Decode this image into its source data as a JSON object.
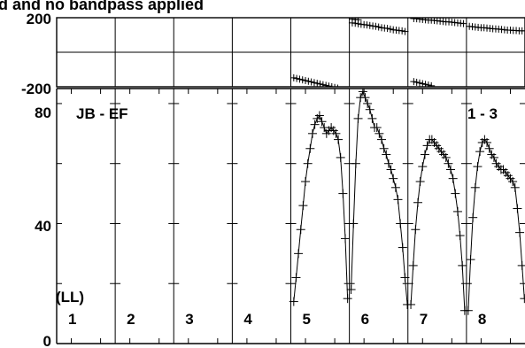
{
  "chart_data": {
    "type": "scatter",
    "title": "d and no bandpass applied",
    "baseline_label": "JB - EF",
    "baseline_range_label": "1 - 3",
    "polarization_label": "(LL)",
    "channel_labels": [
      "1",
      "2",
      "3",
      "4",
      "5",
      "6",
      "7",
      "8"
    ],
    "phase_panel": {
      "ylim": [
        -200,
        200
      ],
      "tick_labels": [
        "200",
        "-200"
      ],
      "series": [
        {
          "channel": "6",
          "x": [
            0.05,
            0.1,
            0.15
          ],
          "y": [
            192,
            190,
            188
          ]
        },
        {
          "channel": "5",
          "x": [
            0.05,
            0.1,
            0.15,
            0.2,
            0.25,
            0.3,
            0.35,
            0.4,
            0.45,
            0.5,
            0.55,
            0.6,
            0.65,
            0.7,
            0.75,
            0.8
          ],
          "y": [
            -148,
            -152,
            -156,
            -160,
            -164,
            -168,
            -172,
            -176,
            -180,
            -184,
            -188,
            -192,
            -196,
            -200,
            -204,
            -208
          ]
        },
        {
          "channel": "6",
          "x": [
            0.05,
            0.1,
            0.15,
            0.2,
            0.25,
            0.3,
            0.35,
            0.4,
            0.45,
            0.5,
            0.55,
            0.6,
            0.65,
            0.7,
            0.75,
            0.8,
            0.85,
            0.9,
            0.95
          ],
          "y": [
            170,
            168,
            165,
            162,
            160,
            158,
            155,
            152,
            150,
            146,
            142,
            140,
            138,
            134,
            130,
            128,
            126,
            124,
            120
          ]
        },
        {
          "channel": "7",
          "x": [
            0.1,
            0.15,
            0.2,
            0.25,
            0.3,
            0.35,
            0.4,
            0.45,
            0.5,
            0.55,
            0.6,
            0.65,
            0.7,
            0.75,
            0.8,
            0.85,
            0.9,
            0.95
          ],
          "y": [
            195,
            194,
            192,
            190,
            188,
            186,
            186,
            184,
            182,
            180,
            178,
            176,
            176,
            174,
            172,
            170,
            168,
            166
          ]
        },
        {
          "channel": "7",
          "x": [
            0.1,
            0.15,
            0.2,
            0.25,
            0.3,
            0.35,
            0.4
          ],
          "y": [
            -170,
            -174,
            -178,
            -182,
            -186,
            -190,
            -194
          ]
        },
        {
          "channel": "8",
          "x": [
            0.05,
            0.1,
            0.15,
            0.2,
            0.25,
            0.3,
            0.35,
            0.4,
            0.45,
            0.5,
            0.55,
            0.6,
            0.65,
            0.7,
            0.75,
            0.8,
            0.85,
            0.9,
            0.95,
            1.0
          ],
          "y": [
            150,
            148,
            146,
            144,
            142,
            142,
            140,
            138,
            136,
            135,
            134,
            132,
            130,
            128,
            128,
            126,
            126,
            124,
            124,
            124
          ]
        }
      ]
    },
    "amplitude_panel": {
      "ylim": [
        0,
        85
      ],
      "tick_labels": [
        "80",
        "40",
        "0"
      ],
      "series": [
        {
          "channel": "5",
          "x": [
            0.05,
            0.09,
            0.13,
            0.17,
            0.21,
            0.25,
            0.29,
            0.33,
            0.37,
            0.41,
            0.45,
            0.49,
            0.53,
            0.57,
            0.61,
            0.65,
            0.69,
            0.73,
            0.77,
            0.81,
            0.85,
            0.89,
            0.93,
            0.97
          ],
          "y": [
            14,
            22,
            30,
            38,
            46,
            54,
            60,
            65,
            70,
            73,
            75,
            76,
            74,
            72,
            70,
            71,
            72,
            71,
            70,
            68,
            62,
            50,
            35,
            15
          ]
        },
        {
          "channel": "6",
          "x": [
            0.03,
            0.07,
            0.11,
            0.15,
            0.19,
            0.23,
            0.27,
            0.31,
            0.35,
            0.39,
            0.43,
            0.47,
            0.51,
            0.55,
            0.59,
            0.63,
            0.67,
            0.71,
            0.75,
            0.79,
            0.83,
            0.87,
            0.91,
            0.95,
            0.99
          ],
          "y": [
            18,
            40,
            60,
            75,
            82,
            84,
            82,
            80,
            78,
            75,
            72,
            72,
            70,
            68,
            65,
            63,
            60,
            58,
            55,
            52,
            48,
            40,
            32,
            22,
            13
          ]
        },
        {
          "channel": "7",
          "x": [
            0.05,
            0.09,
            0.13,
            0.17,
            0.21,
            0.25,
            0.29,
            0.33,
            0.37,
            0.41,
            0.45,
            0.49,
            0.53,
            0.57,
            0.61,
            0.65,
            0.69,
            0.73,
            0.77,
            0.81,
            0.85,
            0.89,
            0.93,
            0.97
          ],
          "y": [
            13,
            26,
            38,
            47,
            54,
            59,
            63,
            66,
            68,
            68,
            67,
            66,
            65,
            64,
            63,
            62,
            60,
            58,
            55,
            50,
            44,
            36,
            26,
            11
          ]
        },
        {
          "channel": "8",
          "x": [
            0.03,
            0.07,
            0.11,
            0.15,
            0.19,
            0.23,
            0.27,
            0.31,
            0.35,
            0.39,
            0.43,
            0.47,
            0.51,
            0.55,
            0.59,
            0.63,
            0.67,
            0.71,
            0.75,
            0.79,
            0.83,
            0.87,
            0.91,
            0.95,
            0.99
          ],
          "y": [
            11,
            28,
            42,
            52,
            59,
            64,
            67,
            68,
            67,
            65,
            63,
            62,
            60,
            59,
            58,
            58,
            57,
            56,
            55,
            54,
            52,
            45,
            37,
            26,
            15
          ]
        }
      ]
    }
  }
}
